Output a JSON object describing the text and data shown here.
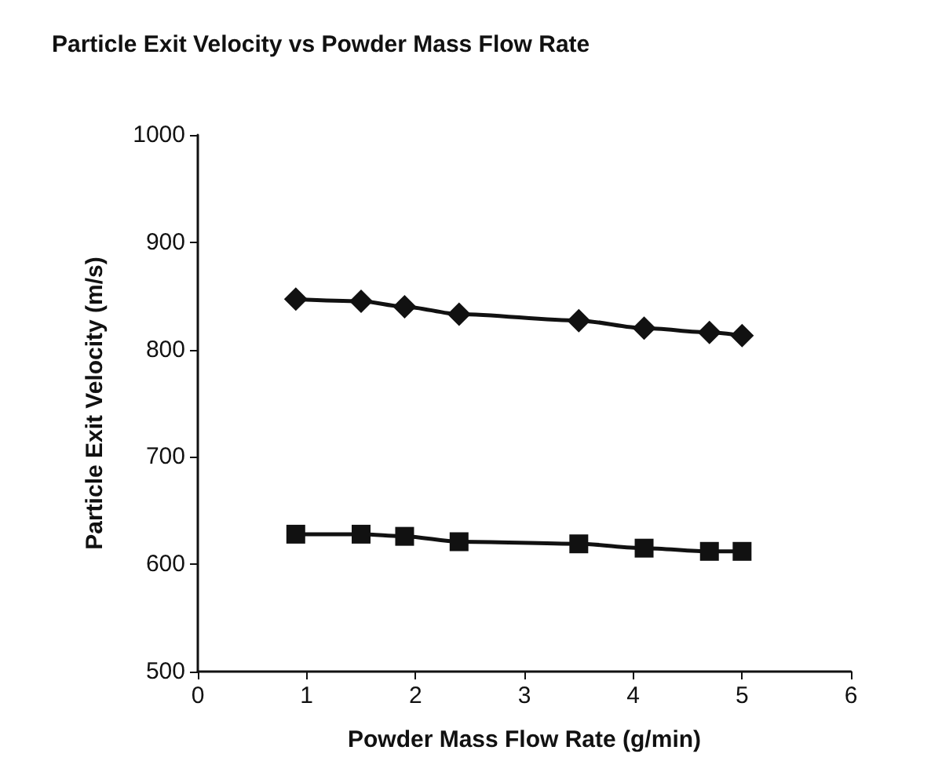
{
  "chart_data": {
    "type": "line",
    "title": "Particle Exit Velocity vs Powder Mass Flow Rate",
    "xlabel": "Powder Mass Flow Rate (g/min)",
    "ylabel": "Particle Exit Velocity (m/s)",
    "x": [
      0.9,
      1.5,
      1.9,
      2.4,
      3.5,
      4.1,
      4.7,
      5.0
    ],
    "series": [
      {
        "color": "#111111",
        "marker": "diamond",
        "values": [
          847,
          845,
          840,
          833,
          827,
          820,
          816,
          813
        ]
      },
      {
        "color": "#111111",
        "marker": "square",
        "values": [
          628,
          628,
          626,
          621,
          619,
          615,
          612,
          612
        ]
      }
    ],
    "xlim": [
      0,
      6
    ],
    "xticks": [
      0,
      1,
      2,
      3,
      4,
      5,
      6
    ],
    "ylim": [
      500,
      1000
    ],
    "yticks": [
      500,
      600,
      700,
      800,
      900,
      1000
    ],
    "grid": false
  }
}
